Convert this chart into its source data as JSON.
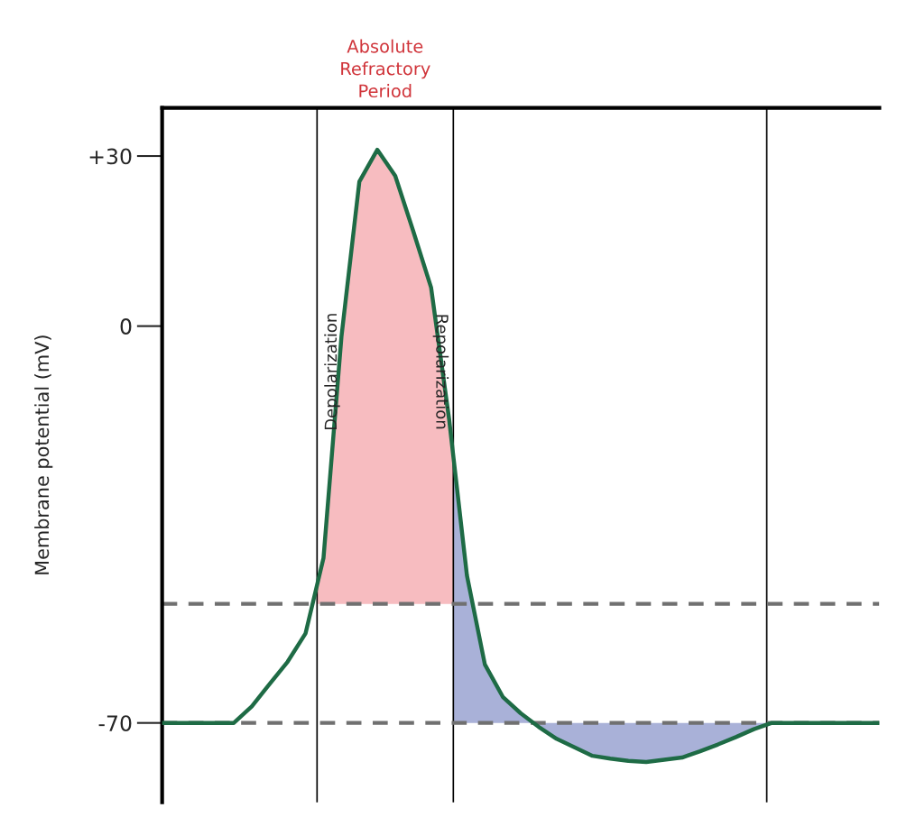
{
  "chart_data": {
    "type": "line",
    "ylabel": "Membrane potential (mV)",
    "categories": [
      null,
      null,
      null,
      null,
      null,
      null,
      null,
      null,
      null,
      null,
      null,
      null,
      null,
      null,
      null,
      null,
      null,
      null,
      null,
      null,
      null,
      null,
      null,
      null,
      null,
      null,
      null,
      null,
      null,
      null,
      null,
      null,
      null,
      null,
      null,
      null,
      null,
      null,
      null,
      null,
      null
    ],
    "series": [
      {
        "color": "#1e6b45",
        "values": [
          -70,
          -70,
          -70,
          -70,
          -70,
          -67.1,
          -63.1,
          -59.2,
          -54.2,
          -40.9,
          -1.9,
          25.5,
          31.1,
          26.5,
          16.8,
          6.8,
          -16.3,
          -44,
          -59.7,
          -65.4,
          -68.3,
          -70.7,
          -72.8,
          -74.3,
          -75.8,
          -76.3,
          -76.7,
          -76.9,
          -76.5,
          -76.1,
          -75,
          -73.8,
          -72.5,
          -71.1,
          -70,
          -70,
          -70,
          -70,
          -70,
          -70,
          -70
        ]
      }
    ],
    "ylim": [
      -84,
      38.5
    ],
    "yticks": [
      {
        "value": 30,
        "label": "+30"
      },
      {
        "value": 0,
        "label": "0"
      },
      {
        "value": -70,
        "label": "-70"
      }
    ],
    "tick_labels": "y",
    "ref_lines": [
      {
        "axis": "y",
        "value": -49,
        "color": "#707070",
        "line_style": "dashed"
      },
      {
        "axis": "y",
        "value": -70,
        "color": "#707070",
        "line_style": "dashed"
      }
    ],
    "annotations": [
      "Absolute\nRefractory\nPeriod",
      "Depolarization",
      "Repolarization"
    ]
  }
}
